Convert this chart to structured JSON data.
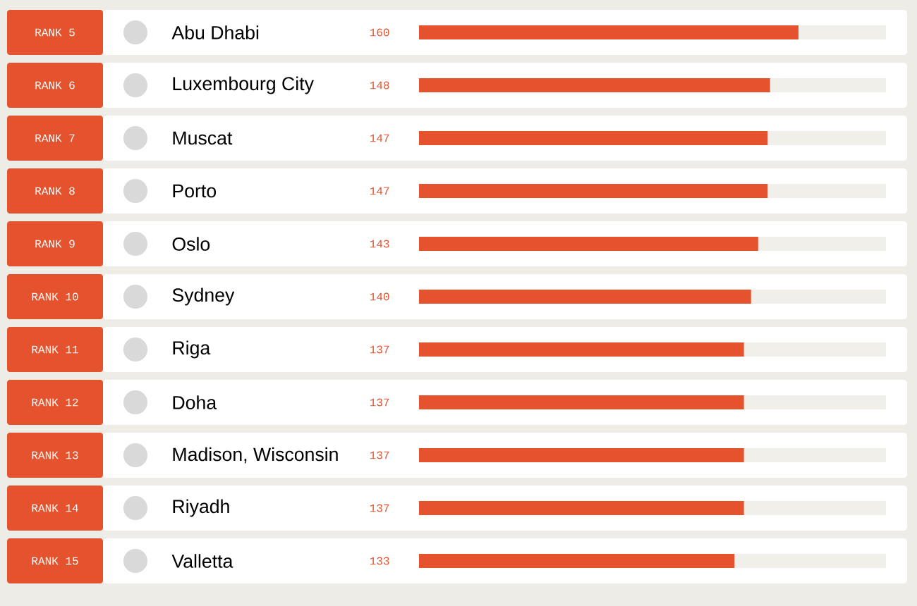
{
  "chart_data": {
    "type": "bar",
    "orientation": "horizontal",
    "categories": [
      "Abu Dhabi",
      "Luxembourg City",
      "Muscat",
      "Porto",
      "Oslo",
      "Sydney",
      "Riga",
      "Doha",
      "Madison, Wisconsin",
      "Riyadh",
      "Valletta"
    ],
    "values": [
      160,
      148,
      147,
      147,
      143,
      140,
      137,
      137,
      137,
      137,
      133
    ],
    "color": "#e4532e",
    "data_labels": true,
    "tick_labels": "y",
    "annotations": [
      "RANK 5",
      "RANK 6",
      "RANK 7",
      "RANK 8",
      "RANK 9",
      "RANK 10",
      "RANK 11",
      "RANK 12",
      "RANK 13",
      "RANK 14",
      "RANK 15"
    ]
  }
}
